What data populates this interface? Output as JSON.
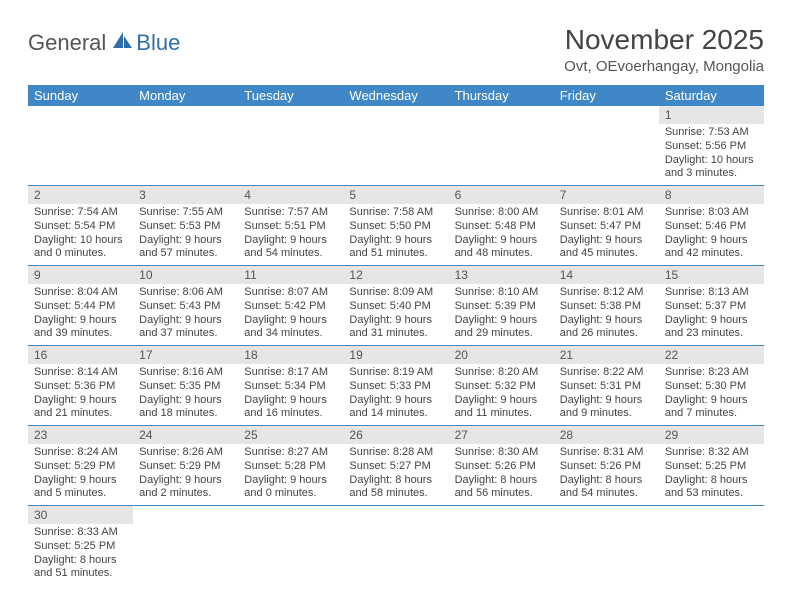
{
  "logo": {
    "text1": "General",
    "text2": "Blue"
  },
  "header": {
    "month_title": "November 2025",
    "location": "Ovt, OEvoerhangay, Mongolia"
  },
  "weekdays": [
    "Sunday",
    "Monday",
    "Tuesday",
    "Wednesday",
    "Thursday",
    "Friday",
    "Saturday"
  ],
  "colors": {
    "header_bg": "#3f87c6",
    "header_fg": "#ffffff",
    "daynum_bg": "#e6e6e6",
    "rule": "#3f87c6",
    "text": "#444444"
  },
  "weeks": [
    [
      null,
      null,
      null,
      null,
      null,
      null,
      {
        "n": "1",
        "sunrise": "Sunrise: 7:53 AM",
        "sunset": "Sunset: 5:56 PM",
        "day1": "Daylight: 10 hours",
        "day2": "and 3 minutes."
      }
    ],
    [
      {
        "n": "2",
        "sunrise": "Sunrise: 7:54 AM",
        "sunset": "Sunset: 5:54 PM",
        "day1": "Daylight: 10 hours",
        "day2": "and 0 minutes."
      },
      {
        "n": "3",
        "sunrise": "Sunrise: 7:55 AM",
        "sunset": "Sunset: 5:53 PM",
        "day1": "Daylight: 9 hours",
        "day2": "and 57 minutes."
      },
      {
        "n": "4",
        "sunrise": "Sunrise: 7:57 AM",
        "sunset": "Sunset: 5:51 PM",
        "day1": "Daylight: 9 hours",
        "day2": "and 54 minutes."
      },
      {
        "n": "5",
        "sunrise": "Sunrise: 7:58 AM",
        "sunset": "Sunset: 5:50 PM",
        "day1": "Daylight: 9 hours",
        "day2": "and 51 minutes."
      },
      {
        "n": "6",
        "sunrise": "Sunrise: 8:00 AM",
        "sunset": "Sunset: 5:48 PM",
        "day1": "Daylight: 9 hours",
        "day2": "and 48 minutes."
      },
      {
        "n": "7",
        "sunrise": "Sunrise: 8:01 AM",
        "sunset": "Sunset: 5:47 PM",
        "day1": "Daylight: 9 hours",
        "day2": "and 45 minutes."
      },
      {
        "n": "8",
        "sunrise": "Sunrise: 8:03 AM",
        "sunset": "Sunset: 5:46 PM",
        "day1": "Daylight: 9 hours",
        "day2": "and 42 minutes."
      }
    ],
    [
      {
        "n": "9",
        "sunrise": "Sunrise: 8:04 AM",
        "sunset": "Sunset: 5:44 PM",
        "day1": "Daylight: 9 hours",
        "day2": "and 39 minutes."
      },
      {
        "n": "10",
        "sunrise": "Sunrise: 8:06 AM",
        "sunset": "Sunset: 5:43 PM",
        "day1": "Daylight: 9 hours",
        "day2": "and 37 minutes."
      },
      {
        "n": "11",
        "sunrise": "Sunrise: 8:07 AM",
        "sunset": "Sunset: 5:42 PM",
        "day1": "Daylight: 9 hours",
        "day2": "and 34 minutes."
      },
      {
        "n": "12",
        "sunrise": "Sunrise: 8:09 AM",
        "sunset": "Sunset: 5:40 PM",
        "day1": "Daylight: 9 hours",
        "day2": "and 31 minutes."
      },
      {
        "n": "13",
        "sunrise": "Sunrise: 8:10 AM",
        "sunset": "Sunset: 5:39 PM",
        "day1": "Daylight: 9 hours",
        "day2": "and 29 minutes."
      },
      {
        "n": "14",
        "sunrise": "Sunrise: 8:12 AM",
        "sunset": "Sunset: 5:38 PM",
        "day1": "Daylight: 9 hours",
        "day2": "and 26 minutes."
      },
      {
        "n": "15",
        "sunrise": "Sunrise: 8:13 AM",
        "sunset": "Sunset: 5:37 PM",
        "day1": "Daylight: 9 hours",
        "day2": "and 23 minutes."
      }
    ],
    [
      {
        "n": "16",
        "sunrise": "Sunrise: 8:14 AM",
        "sunset": "Sunset: 5:36 PM",
        "day1": "Daylight: 9 hours",
        "day2": "and 21 minutes."
      },
      {
        "n": "17",
        "sunrise": "Sunrise: 8:16 AM",
        "sunset": "Sunset: 5:35 PM",
        "day1": "Daylight: 9 hours",
        "day2": "and 18 minutes."
      },
      {
        "n": "18",
        "sunrise": "Sunrise: 8:17 AM",
        "sunset": "Sunset: 5:34 PM",
        "day1": "Daylight: 9 hours",
        "day2": "and 16 minutes."
      },
      {
        "n": "19",
        "sunrise": "Sunrise: 8:19 AM",
        "sunset": "Sunset: 5:33 PM",
        "day1": "Daylight: 9 hours",
        "day2": "and 14 minutes."
      },
      {
        "n": "20",
        "sunrise": "Sunrise: 8:20 AM",
        "sunset": "Sunset: 5:32 PM",
        "day1": "Daylight: 9 hours",
        "day2": "and 11 minutes."
      },
      {
        "n": "21",
        "sunrise": "Sunrise: 8:22 AM",
        "sunset": "Sunset: 5:31 PM",
        "day1": "Daylight: 9 hours",
        "day2": "and 9 minutes."
      },
      {
        "n": "22",
        "sunrise": "Sunrise: 8:23 AM",
        "sunset": "Sunset: 5:30 PM",
        "day1": "Daylight: 9 hours",
        "day2": "and 7 minutes."
      }
    ],
    [
      {
        "n": "23",
        "sunrise": "Sunrise: 8:24 AM",
        "sunset": "Sunset: 5:29 PM",
        "day1": "Daylight: 9 hours",
        "day2": "and 5 minutes."
      },
      {
        "n": "24",
        "sunrise": "Sunrise: 8:26 AM",
        "sunset": "Sunset: 5:29 PM",
        "day1": "Daylight: 9 hours",
        "day2": "and 2 minutes."
      },
      {
        "n": "25",
        "sunrise": "Sunrise: 8:27 AM",
        "sunset": "Sunset: 5:28 PM",
        "day1": "Daylight: 9 hours",
        "day2": "and 0 minutes."
      },
      {
        "n": "26",
        "sunrise": "Sunrise: 8:28 AM",
        "sunset": "Sunset: 5:27 PM",
        "day1": "Daylight: 8 hours",
        "day2": "and 58 minutes."
      },
      {
        "n": "27",
        "sunrise": "Sunrise: 8:30 AM",
        "sunset": "Sunset: 5:26 PM",
        "day1": "Daylight: 8 hours",
        "day2": "and 56 minutes."
      },
      {
        "n": "28",
        "sunrise": "Sunrise: 8:31 AM",
        "sunset": "Sunset: 5:26 PM",
        "day1": "Daylight: 8 hours",
        "day2": "and 54 minutes."
      },
      {
        "n": "29",
        "sunrise": "Sunrise: 8:32 AM",
        "sunset": "Sunset: 5:25 PM",
        "day1": "Daylight: 8 hours",
        "day2": "and 53 minutes."
      }
    ],
    [
      {
        "n": "30",
        "sunrise": "Sunrise: 8:33 AM",
        "sunset": "Sunset: 5:25 PM",
        "day1": "Daylight: 8 hours",
        "day2": "and 51 minutes."
      },
      null,
      null,
      null,
      null,
      null,
      null
    ]
  ]
}
